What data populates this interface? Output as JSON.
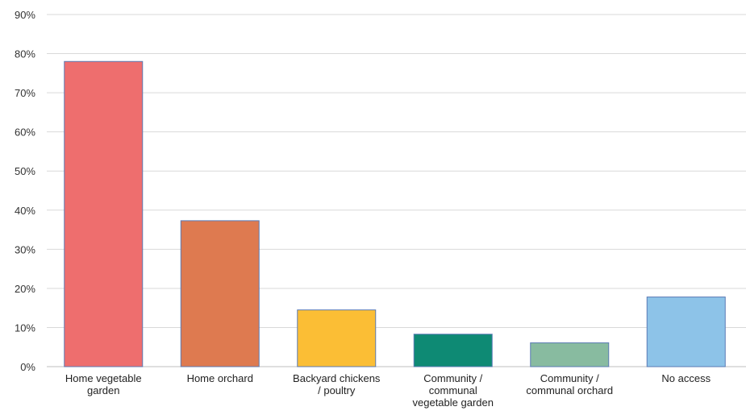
{
  "chart_data": {
    "type": "bar",
    "title": "",
    "xlabel": "",
    "ylabel": "",
    "categories": [
      "Home vegetable garden",
      "Home orchard",
      "Backyard chickens / poultry",
      "Community / communal vegetable garden",
      "Community / communal orchard",
      "No access"
    ],
    "category_label_lines": [
      [
        "Home vegetable",
        "garden"
      ],
      [
        "Home orchard"
      ],
      [
        "Backyard chickens",
        "/ poultry"
      ],
      [
        "Community /",
        "communal",
        "vegetable garden"
      ],
      [
        "Community /",
        "communal orchard"
      ],
      [
        "No access"
      ]
    ],
    "values": [
      78,
      37.3,
      14.5,
      8.3,
      6.1,
      17.8
    ],
    "value_unit": "%",
    "ylim": [
      0,
      90
    ],
    "yticks": [
      0,
      10,
      20,
      30,
      40,
      50,
      60,
      70,
      80,
      90
    ],
    "ytick_labels": [
      "0%",
      "10%",
      "20%",
      "30%",
      "40%",
      "50%",
      "60%",
      "70%",
      "80%",
      "90%"
    ],
    "bar_colors": [
      "#EE6E6E",
      "#DE7A50",
      "#FBBE35",
      "#0E8A74",
      "#88BBA0",
      "#8DC3E8"
    ],
    "bar_border_color": "#5B7BB5",
    "grid": true,
    "grid_color": "#D9D9D9",
    "legend": "none"
  }
}
